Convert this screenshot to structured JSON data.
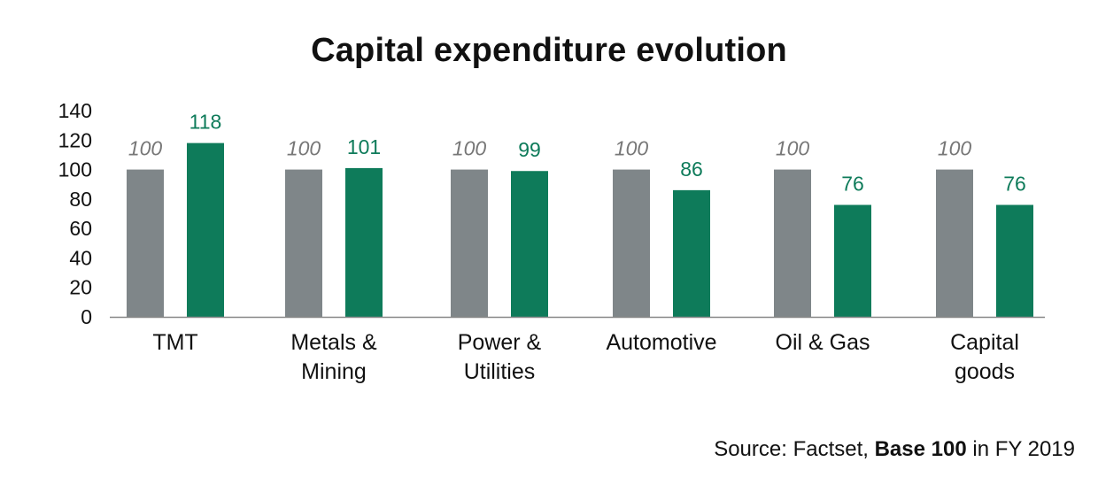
{
  "chart_data": {
    "type": "bar",
    "title": "Capital expenditure evolution",
    "categories": [
      "TMT",
      "Metals & Mining",
      "Power & Utilities",
      "Automotive",
      "Oil & Gas",
      "Capital goods"
    ],
    "category_lines": [
      [
        "TMT"
      ],
      [
        "Metals &",
        "Mining"
      ],
      [
        "Power &",
        "Utilities"
      ],
      [
        "Automotive"
      ],
      [
        "Oil & Gas"
      ],
      [
        "Capital",
        "goods"
      ]
    ],
    "series": [
      {
        "values": [
          100,
          100,
          100,
          100,
          100,
          100
        ],
        "color": "#7F8689",
        "label_color": "#777777",
        "label_style": "italic"
      },
      {
        "values": [
          118,
          101,
          99,
          86,
          76,
          76
        ],
        "color": "#0E7B5A",
        "label_color": "#0E7B5A",
        "label_style": "normal"
      }
    ],
    "y_ticks": [
      0,
      20,
      40,
      60,
      80,
      100,
      120,
      140
    ],
    "ylim": [
      0,
      140
    ],
    "xlabel": "",
    "ylabel": "",
    "grid": false,
    "legend": "none"
  },
  "source": {
    "prefix": "Source: Factset, ",
    "bold": "Base 100",
    "suffix": " in FY 2019"
  }
}
